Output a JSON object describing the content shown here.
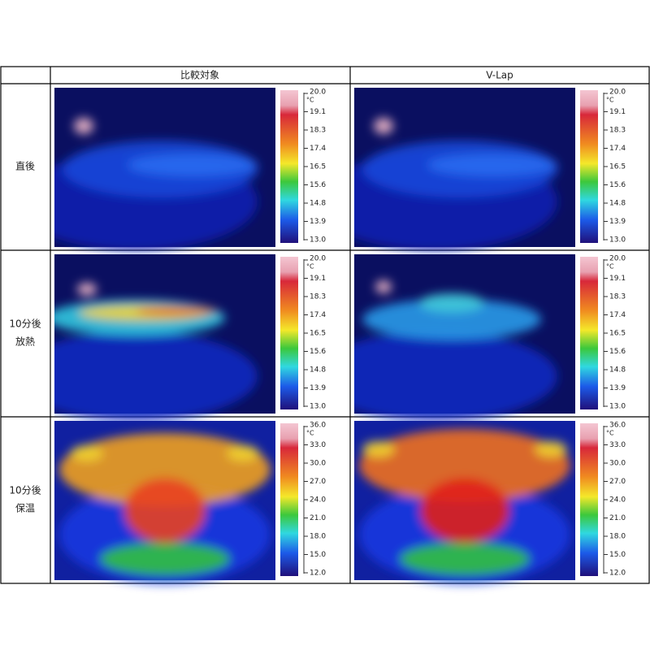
{
  "table": {
    "columns": [
      "比較対象",
      "V-Lap"
    ],
    "rows": [
      {
        "label": [
          "直後"
        ],
        "unit": "°C",
        "scale": [
          "20.0",
          "19.1",
          "18.3",
          "17.4",
          "16.5",
          "15.6",
          "14.8",
          "13.9",
          "13.0"
        ]
      },
      {
        "label": [
          "10分後",
          "放熱"
        ],
        "unit": "°C",
        "scale": [
          "20.0",
          "19.1",
          "18.3",
          "17.4",
          "16.5",
          "15.6",
          "14.8",
          "13.9",
          "13.0"
        ]
      },
      {
        "label": [
          "10分後",
          "保温"
        ],
        "unit": "°C",
        "scale": [
          "36.0",
          "33.0",
          "30.0",
          "27.0",
          "24.0",
          "21.0",
          "18.0",
          "15.0",
          "12.0"
        ]
      }
    ]
  }
}
